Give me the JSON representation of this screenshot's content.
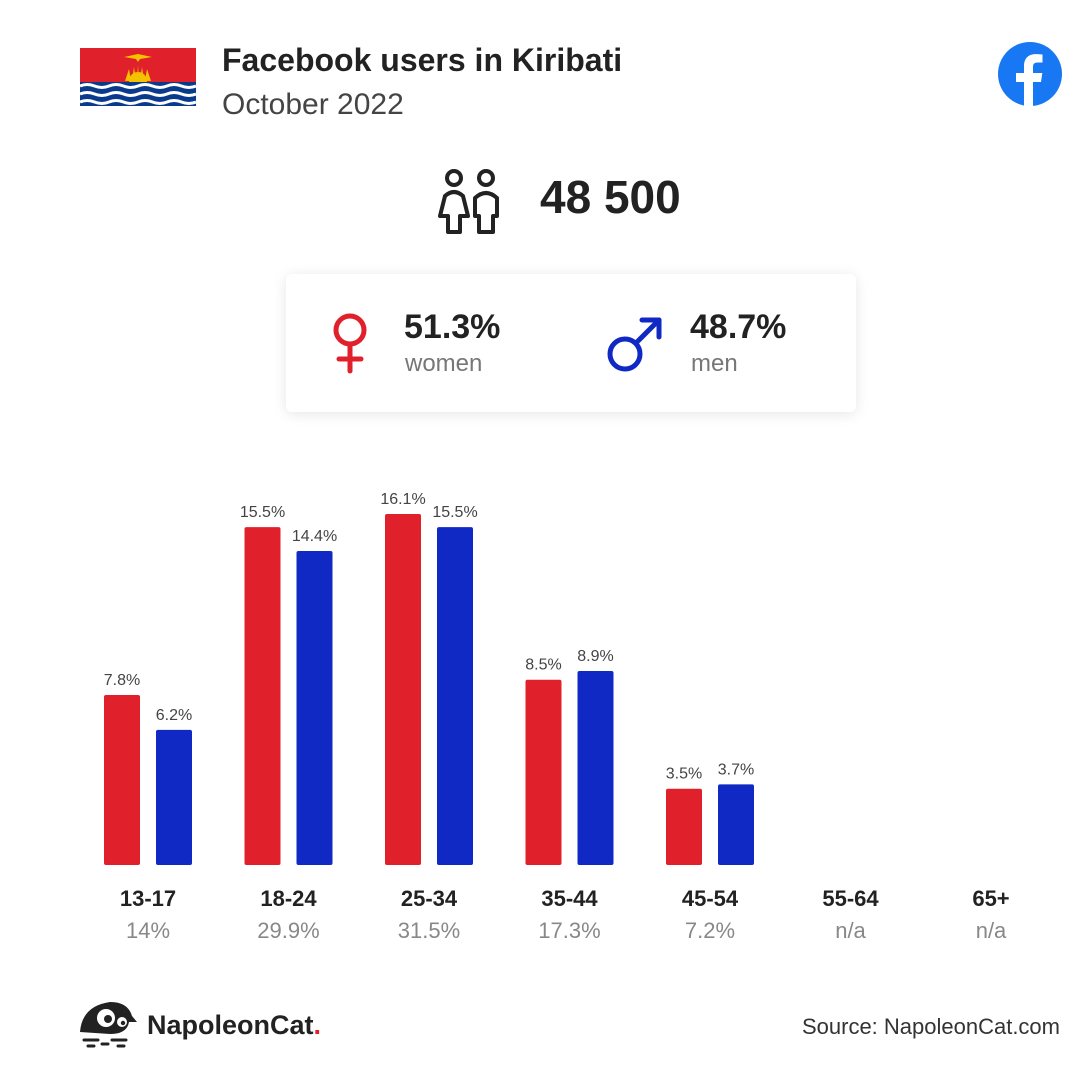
{
  "header": {
    "title": "Facebook users in Kiribati",
    "subtitle": "October 2022"
  },
  "summary": {
    "total": "48 500",
    "women_pct": "51.3%",
    "women_label": "women",
    "men_pct": "48.7%",
    "men_label": "men"
  },
  "colors": {
    "women": "#e0202a",
    "men": "#1028c4",
    "facebook": "#1877f2"
  },
  "chart_data": {
    "type": "bar",
    "categories": [
      "13-17",
      "18-24",
      "25-34",
      "35-44",
      "45-54",
      "55-64",
      "65+"
    ],
    "category_totals": [
      "14%",
      "29.9%",
      "31.5%",
      "17.3%",
      "7.2%",
      "n/a",
      "n/a"
    ],
    "series": [
      {
        "values": [
          7.8,
          15.5,
          16.1,
          8.5,
          3.5,
          null,
          null
        ],
        "color": "#e0202a"
      },
      {
        "values": [
          6.2,
          14.4,
          15.5,
          8.9,
          3.7,
          null,
          null
        ],
        "color": "#1028c4"
      }
    ],
    "value_suffix": "%",
    "ylim": [
      0,
      16.1
    ],
    "grid": false
  },
  "footer": {
    "brand": "NapoleonCat",
    "brand_dot": ".",
    "source": "Source: NapoleonCat.com"
  }
}
